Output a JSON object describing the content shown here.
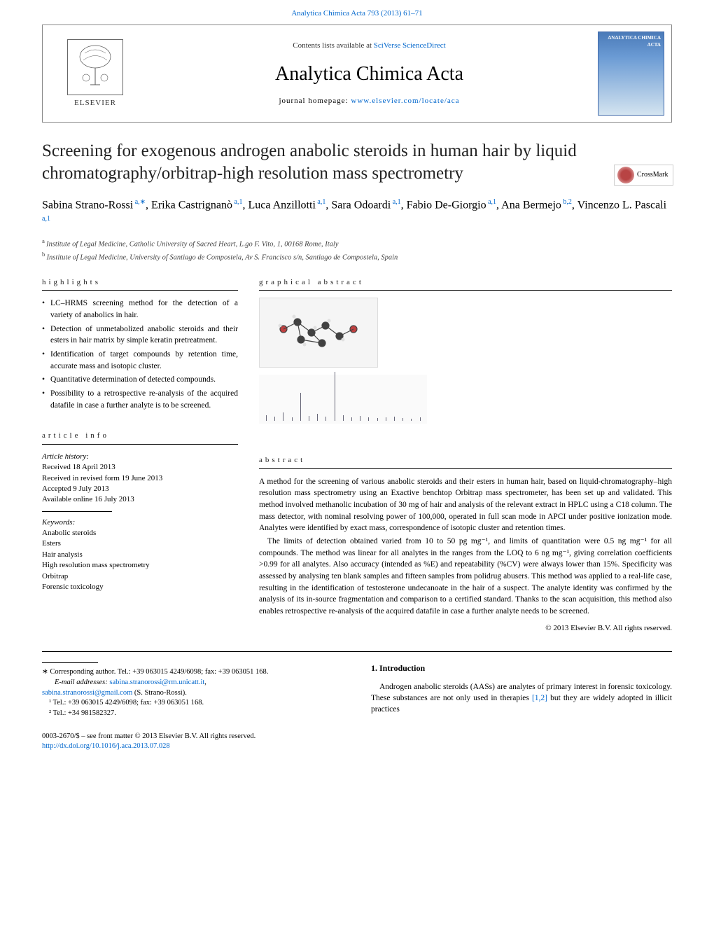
{
  "header": {
    "citation_link": "Analytica Chimica Acta 793 (2013) 61–71",
    "contents_line_prefix": "Contents lists available at ",
    "contents_line_link": "SciVerse ScienceDirect",
    "journal_title": "Analytica Chimica Acta",
    "homepage_prefix": "journal homepage: ",
    "homepage_url": "www.elsevier.com/locate/aca",
    "elsevier_label": "ELSEVIER",
    "cover_title": "ANALYTICA CHIMICA ACTA"
  },
  "crossmark_label": "CrossMark",
  "article": {
    "title": "Screening for exogenous androgen anabolic steroids in human hair by liquid chromatography/orbitrap-high resolution mass spectrometry",
    "authors_html": "Sabina Strano-Rossi",
    "authors": [
      {
        "name": "Sabina Strano-Rossi",
        "sup": "a,∗"
      },
      {
        "name": "Erika Castrignanò",
        "sup": "a,1"
      },
      {
        "name": "Luca Anzillotti",
        "sup": "a,1"
      },
      {
        "name": "Sara Odoardi",
        "sup": "a,1"
      },
      {
        "name": "Fabio De-Giorgio",
        "sup": "a,1"
      },
      {
        "name": "Ana Bermejo",
        "sup": "b,2"
      },
      {
        "name": "Vincenzo L. Pascali",
        "sup": "a,1"
      }
    ],
    "affiliations": [
      {
        "marker": "a",
        "text": "Institute of Legal Medicine, Catholic University of Sacred Heart, L.go F. Vito, 1, 00168 Rome, Italy"
      },
      {
        "marker": "b",
        "text": "Institute of Legal Medicine, University of Santiago de Compostela, Av S. Francisco s/n, Santiago de Compostela, Spain"
      }
    ]
  },
  "highlights": {
    "heading": "highlights",
    "items": [
      "LC–HRMS screening method for the detection of a variety of anabolics in hair.",
      "Detection of unmetabolized anabolic steroids and their esters in hair matrix by simple keratin pretreatment.",
      "Identification of target compounds by retention time, accurate mass and isotopic cluster.",
      "Quantitative determination of detected compounds.",
      "Possibility to a retrospective re-analysis of the acquired datafile in case a further analyte is to be screened."
    ]
  },
  "graphical_abstract": {
    "heading": "graphical abstract",
    "molecule_placeholder": "[3D molecular structure]",
    "peaks": [
      8,
      6,
      12,
      5,
      40,
      7,
      10,
      6,
      70,
      8,
      5,
      7,
      5,
      4,
      5,
      6,
      4,
      3,
      5
    ]
  },
  "article_info": {
    "heading": "article info",
    "history_label": "Article history:",
    "history": [
      "Received 18 April 2013",
      "Received in revised form 19 June 2013",
      "Accepted 9 July 2013",
      "Available online 16 July 2013"
    ],
    "keywords_label": "Keywords:",
    "keywords": [
      "Anabolic steroids",
      "Esters",
      "Hair analysis",
      "High resolution mass spectrometry",
      "Orbitrap",
      "Forensic toxicology"
    ]
  },
  "abstract": {
    "heading": "abstract",
    "paragraphs": [
      "A method for the screening of various anabolic steroids and their esters in human hair, based on liquid-chromatography–high resolution mass spectrometry using an Exactive benchtop Orbitrap mass spectrometer, has been set up and validated. This method involved methanolic incubation of 30 mg of hair and analysis of the relevant extract in HPLC using a C18 column. The mass detector, with nominal resolving power of 100,000, operated in full scan mode in APCI under positive ionization mode. Analytes were identified by exact mass, correspondence of isotopic cluster and retention times.",
      "The limits of detection obtained varied from 10 to 50 pg mg⁻¹, and limits of quantitation were 0.5 ng mg⁻¹ for all compounds. The method was linear for all analytes in the ranges from the LOQ to 6 ng mg⁻¹, giving correlation coefficients >0.99 for all analytes. Also accuracy (intended as %E) and repeatability (%CV) were always lower than 15%. Specificity was assessed by analysing ten blank samples and fifteen samples from polidrug abusers. This method was applied to a real-life case, resulting in the identification of testosterone undecanoate in the hair of a suspect. The analyte identity was confirmed by the analysis of its in-source fragmentation and comparison to a certified standard. Thanks to the scan acquisition, this method also enables retrospective re-analysis of the acquired datafile in case a further analyte needs to be screened."
    ],
    "copyright": "© 2013 Elsevier B.V. All rights reserved."
  },
  "footnotes": {
    "corresponding": "∗ Corresponding author. Tel.: +39 063015 4249/6098; fax: +39 063051 168.",
    "email_label": "E-mail addresses: ",
    "email1": "sabina.stranorossi@rm.unicatt.it",
    "email_sep": ",",
    "email2": "sabina.stranorossi@gmail.com",
    "email_author": " (S. Strano-Rossi).",
    "note1": "¹ Tel.: +39 063015 4249/6098; fax: +39 063051 168.",
    "note2": "² Tel.: +34 981582327."
  },
  "introduction": {
    "heading": "1. Introduction",
    "text_prefix": "Androgen anabolic steroids (AASs) are analytes of primary interest in forensic toxicology. These substances are not only used in therapies ",
    "ref": "[1,2]",
    "text_suffix": " but they are widely adopted in illicit practices"
  },
  "issn": {
    "line": "0003-2670/$ – see front matter © 2013 Elsevier B.V. All rights reserved.",
    "doi": "http://dx.doi.org/10.1016/j.aca.2013.07.028"
  },
  "colors": {
    "link": "#0066cc",
    "text": "#000000",
    "border": "#888888"
  }
}
